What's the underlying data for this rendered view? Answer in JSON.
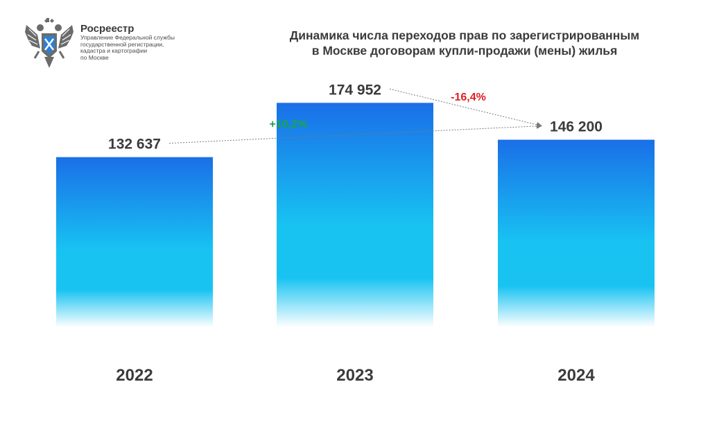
{
  "header": {
    "org_name": "Росреестр",
    "org_sub": "Управление Федеральной службы\nгосударственной регистрации,\nкадастра и картографии\nпо Москве",
    "emblem_icon": "double-headed-eagle-emblem-icon"
  },
  "title_line1": "Динамика числа переходов прав по зарегистрированным",
  "title_line2": "в Москве договорам купли-продажи (мены) жилья",
  "colors": {
    "bar_top": "#1a6fe8",
    "bar_mid": "#18c3f2",
    "bar_bottom": "#ffffff",
    "increase": "#19a64a",
    "decrease": "#e02020",
    "text": "#3b3b3b"
  },
  "chart_data": {
    "type": "bar",
    "categories": [
      "2022",
      "2023",
      "2024"
    ],
    "values": [
      132637,
      174952,
      146200
    ],
    "value_labels": [
      "132 637",
      "174 952",
      "146 200"
    ],
    "ylim": [
      0,
      200000
    ],
    "grid": false,
    "changes": [
      {
        "from": 0,
        "to": 2,
        "label": "+10,2%",
        "kind": "increase"
      },
      {
        "from": 1,
        "to": 2,
        "label": "-16,4%",
        "kind": "decrease"
      }
    ]
  }
}
